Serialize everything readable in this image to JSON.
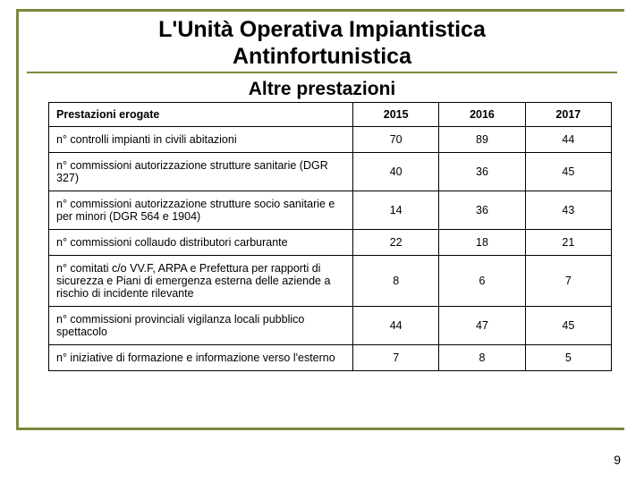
{
  "title_line1": "L'Unità Operativa Impiantistica",
  "title_line2": "Antinfortunistica",
  "subtitle": "Altre prestazioni",
  "table": {
    "header_label": "Prestazioni erogate",
    "years": [
      "2015",
      "2016",
      "2017"
    ],
    "rows": [
      {
        "label": "n° controlli impianti in civili abitazioni",
        "values": [
          "70",
          "89",
          "44"
        ]
      },
      {
        "label": "n° commissioni autorizzazione strutture sanitarie (DGR 327)",
        "values": [
          "40",
          "36",
          "45"
        ]
      },
      {
        "label": "n° commissioni autorizzazione strutture socio sanitarie e per minori (DGR 564 e 1904)",
        "values": [
          "14",
          "36",
          "43"
        ]
      },
      {
        "label": "n° commissioni collaudo distributori carburante",
        "values": [
          "22",
          "18",
          "21"
        ]
      },
      {
        "label": "n° comitati c/o VV.F, ARPA e Prefettura per rapporti di sicurezza e Piani di emergenza esterna delle aziende a rischio di incidente rilevante",
        "values": [
          "8",
          "6",
          "7"
        ]
      },
      {
        "label": "n° commissioni provinciali vigilanza locali pubblico spettacolo",
        "values": [
          "44",
          "47",
          "45"
        ]
      },
      {
        "label": "n° iniziative di formazione e informazione verso l'esterno",
        "values": [
          "7",
          "8",
          "5"
        ]
      }
    ]
  },
  "page_number": "9",
  "style": {
    "accent_color": "#7a8a3a",
    "background_color": "#ffffff",
    "text_color": "#000000",
    "border_color": "#000000",
    "title_fontsize": 25,
    "subtitle_fontsize": 21,
    "table_fontsize": 12.5
  }
}
